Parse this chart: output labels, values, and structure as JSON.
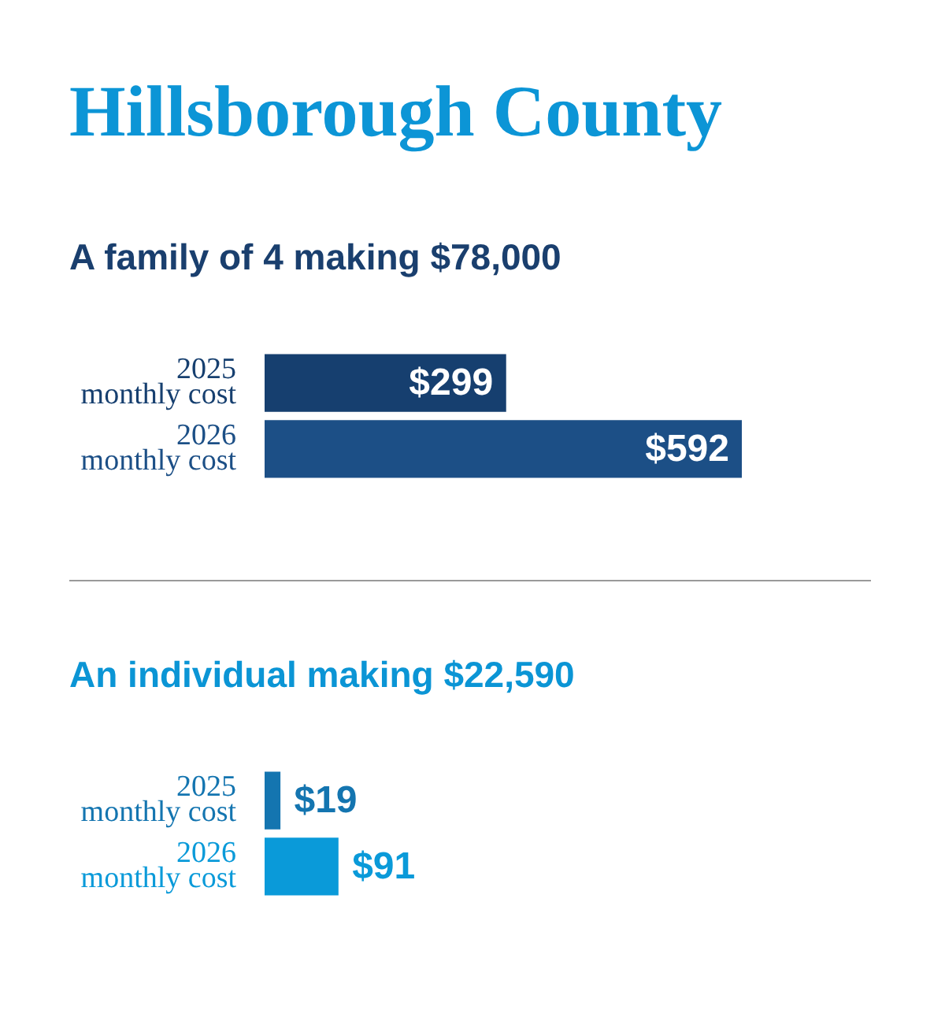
{
  "chart_data": [
    {
      "type": "bar",
      "orientation": "horizontal",
      "title": "Hillsborough County",
      "subtitle": "A family of 4 making $78,000",
      "categories": [
        "2025\nmonthly cost",
        "2026\nmonthly cost"
      ],
      "values": [
        299,
        592
      ],
      "colors": [
        "#163f6f",
        "#1c4f86"
      ],
      "value_labels": [
        "$299",
        "$592"
      ]
    },
    {
      "type": "bar",
      "orientation": "horizontal",
      "title": "An individual making $22,590",
      "categories": [
        "2025\nmonthly cost",
        "2026\nmonthly cost"
      ],
      "values": [
        19,
        91
      ],
      "colors": [
        "#1475b0",
        "#0a9ad9"
      ],
      "value_labels": [
        "$19",
        "$91"
      ]
    }
  ]
}
